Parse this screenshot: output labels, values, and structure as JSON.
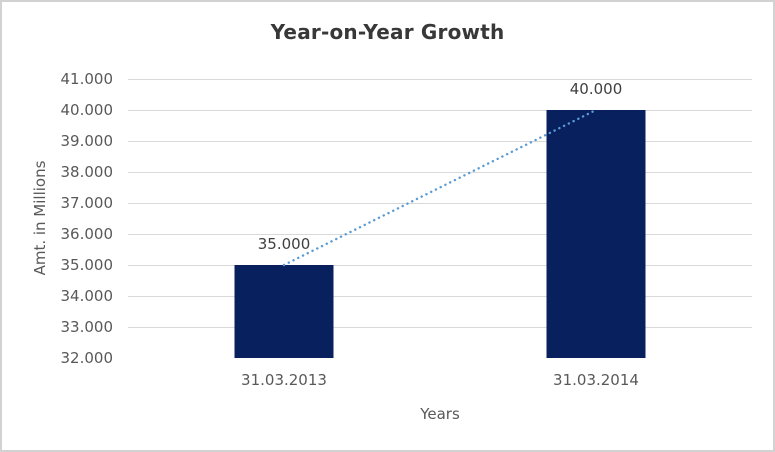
{
  "frame": {
    "border_color": "#d2d2d2",
    "background_color": "#ffffff"
  },
  "chart_data": {
    "type": "bar",
    "title": "Year-on-Year Growth",
    "categories": [
      "31.03.2013",
      "31.03.2014"
    ],
    "values": [
      35000,
      40000
    ],
    "data_labels": [
      "35.000",
      "40.000"
    ],
    "xlabel": "Years",
    "ylabel": "Amt. in Millions",
    "ylim": [
      32000,
      41000
    ],
    "ytick_step": 1000,
    "ytick_labels": [
      "32.000",
      "33.000",
      "34.000",
      "35.000",
      "36.000",
      "37.000",
      "38.000",
      "39.000",
      "40.000",
      "41.000"
    ],
    "grid": true,
    "legend": "none",
    "bar_color": "#08215e",
    "gridline_color": "#d9d9d9",
    "axis_line_color": "#c6c6c6",
    "tick_label_color": "#595959",
    "data_label_color": "#404040",
    "title_color": "#383838",
    "axis_title_color": "#595959",
    "trendline": {
      "type": "linear",
      "style": "dotted",
      "color": "#5b9bd5",
      "from_value": 35000,
      "to_value": 40000
    }
  }
}
